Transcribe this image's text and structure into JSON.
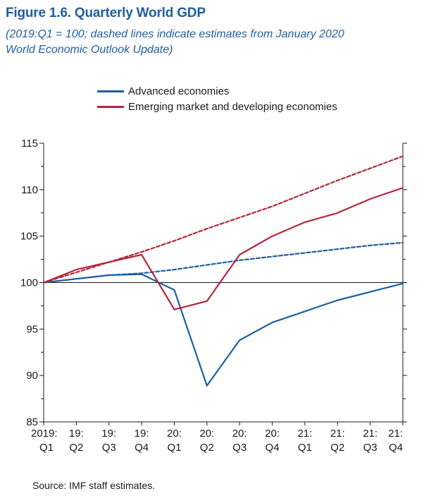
{
  "figure": {
    "title": "Figure 1.6. Quarterly World GDP",
    "subtitle_line1": "(2019:Q1 = 100; dashed lines indicate estimates from January 2020",
    "subtitle_line2": "World Economic Outlook Update)",
    "source": "Source: IMF staff estimates."
  },
  "chart_data": {
    "type": "line",
    "title": "Figure 1.6. Quarterly World GDP",
    "subtitle": "(2019:Q1 = 100; dashed lines indicate estimates from January 2020 World Economic Outlook Update)",
    "xlabel": "",
    "ylabel": "",
    "ylim": [
      85,
      115
    ],
    "yticks": [
      85,
      90,
      95,
      100,
      105,
      110,
      115
    ],
    "reference_line": 100,
    "legend_position": "top-center",
    "categories": [
      "2019:Q1",
      "19:Q2",
      "19:Q3",
      "19:Q4",
      "20:Q1",
      "20:Q2",
      "20:Q3",
      "20:Q4",
      "21:Q1",
      "21:Q2",
      "21:Q3",
      "21:Q4"
    ],
    "x_tick_labels": [
      [
        "2019:",
        "Q1"
      ],
      [
        "19:",
        "Q2"
      ],
      [
        "19:",
        "Q3"
      ],
      [
        "19:",
        "Q4"
      ],
      [
        "20:",
        "Q1"
      ],
      [
        "20:",
        "Q2"
      ],
      [
        "20:",
        "Q3"
      ],
      [
        "20:",
        "Q4"
      ],
      [
        "21:",
        "Q1"
      ],
      [
        "21:",
        "Q2"
      ],
      [
        "21:",
        "Q3"
      ],
      [
        "21:",
        "Q4"
      ]
    ],
    "series": [
      {
        "name": "Advanced economies",
        "color": "#1f5fa0",
        "dashed": false,
        "values": [
          100,
          100.4,
          100.8,
          100.9,
          99.2,
          88.9,
          93.8,
          95.7,
          96.9,
          98.1,
          99.0,
          99.9
        ]
      },
      {
        "name": "Emerging market and developing economies",
        "color": "#b5273a",
        "dashed": false,
        "values": [
          100,
          101.4,
          102.2,
          103.0,
          97.1,
          98.0,
          103.0,
          105.0,
          106.5,
          107.5,
          109.0,
          110.2
        ]
      },
      {
        "color": "#1f5fa0",
        "dashed": true,
        "values": [
          100,
          100.4,
          100.8,
          101.0,
          101.4,
          101.9,
          102.4,
          102.8,
          103.2,
          103.6,
          104.0,
          104.3
        ]
      },
      {
        "color": "#b5273a",
        "dashed": true,
        "values": [
          100,
          101.1,
          102.2,
          103.3,
          104.5,
          105.8,
          107.0,
          108.2,
          109.6,
          111.0,
          112.3,
          113.6
        ]
      }
    ]
  }
}
